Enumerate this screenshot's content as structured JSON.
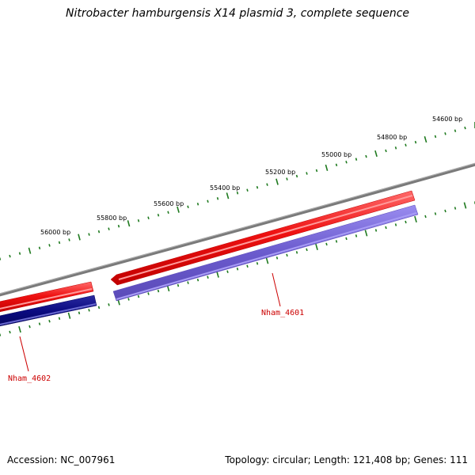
{
  "title": "Nitrobacter hamburgensis X14 plasmid 3, complete sequence",
  "ticks": [
    {
      "label": "54600 bp",
      "bp": 54600
    },
    {
      "label": "54800 bp",
      "bp": 54800
    },
    {
      "label": "55000 bp",
      "bp": 55000
    },
    {
      "label": "55200 bp",
      "bp": 55200
    },
    {
      "label": "55400 bp",
      "bp": 55400
    },
    {
      "label": "55600 bp",
      "bp": 55600
    },
    {
      "label": "55800 bp",
      "bp": 55800
    },
    {
      "label": "56000 bp",
      "bp": 56000
    }
  ],
  "genes": [
    {
      "label": "Nham_4601"
    },
    {
      "label": "Nham_4602"
    }
  ],
  "colors": {
    "backbone": "#7a7a7a",
    "tick": "#1f7a1f",
    "forward_strand": "#ee1111",
    "reverse_strand_light": "#6a5acd",
    "reverse_strand_dark": "#0a0a80",
    "gene_label": "#cc0000"
  },
  "footer": {
    "accession": "Accession: NC_007961",
    "summary": "Topology: circular; Length: 121,408 bp; Genes: 111"
  }
}
